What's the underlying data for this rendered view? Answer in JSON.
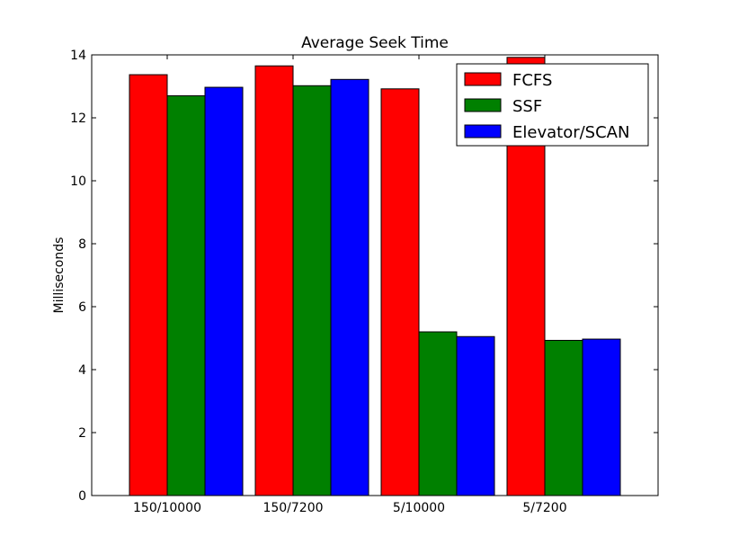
{
  "chart_data": {
    "type": "bar",
    "title": "Average Seek Time",
    "xlabel": "",
    "ylabel": "Milliseconds",
    "categories": [
      "150/10000",
      "150/7200",
      "5/10000",
      "5/7200"
    ],
    "series": [
      {
        "name": "FCFS",
        "color": "#ff0000",
        "values": [
          13.37,
          13.65,
          12.92,
          13.92
        ]
      },
      {
        "name": "SSF",
        "color": "#008000",
        "values": [
          12.7,
          13.02,
          5.2,
          4.93
        ]
      },
      {
        "name": "Elevator/SCAN",
        "color": "#0000ff",
        "values": [
          12.97,
          13.22,
          5.05,
          4.97
        ]
      }
    ],
    "ylim": [
      0,
      14
    ],
    "yticks": [
      0,
      2,
      4,
      6,
      8,
      10,
      12,
      14
    ],
    "ytick_labels": [
      "0",
      "2",
      "4",
      "6",
      "8",
      "10",
      "12",
      "14"
    ],
    "grid": false,
    "legend_position": "top-right"
  }
}
